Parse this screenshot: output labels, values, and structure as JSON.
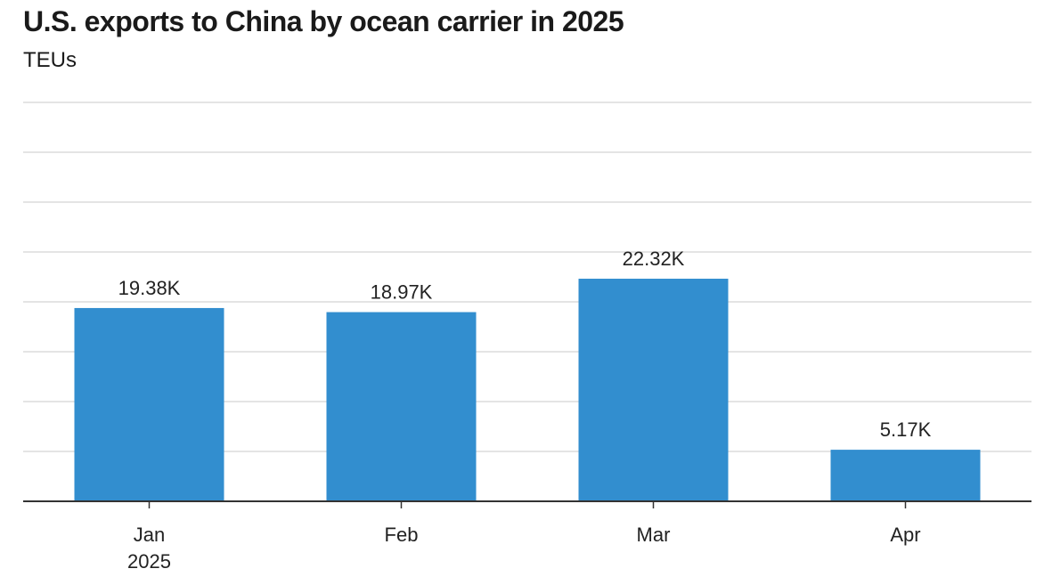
{
  "chart_data": {
    "type": "bar",
    "title": "U.S. exports to China by ocean carrier in 2025",
    "subtitle": "TEUs",
    "categories": [
      "Jan",
      "Feb",
      "Mar",
      "Apr"
    ],
    "category_sublabels": [
      "2025",
      "",
      "",
      ""
    ],
    "values": [
      19380,
      18970,
      22320,
      5170
    ],
    "data_labels": [
      "19.38K",
      "18.97K",
      "22.32K",
      "5.17K"
    ],
    "ylim": [
      0,
      40000
    ],
    "grid": true,
    "colors": {
      "bar": "#328ecf",
      "grid": "#d3d3d3",
      "axis": "#333333"
    }
  }
}
